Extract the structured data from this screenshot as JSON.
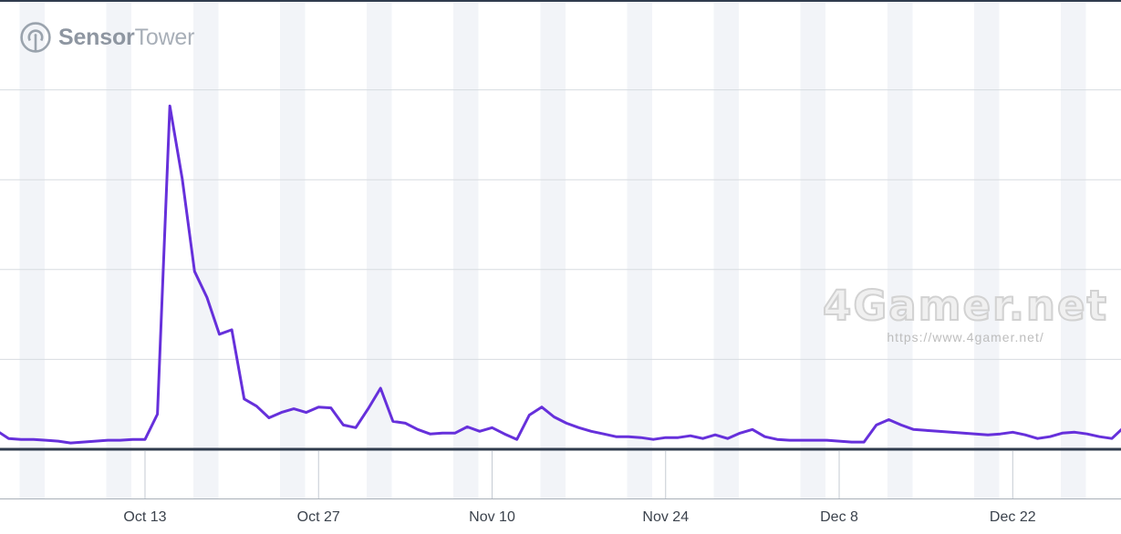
{
  "header": {
    "logo": {
      "brand_bold": "Sensor",
      "brand_light": "Tower"
    }
  },
  "watermark": {
    "title": "4Gamer.net",
    "url": "https://www.4gamer.net/"
  },
  "colors": {
    "line": "#6630DB",
    "baseline": "#303C4E",
    "gridline": "#D7DBE0",
    "weekend_band": "#F2F4F8",
    "tick_line": "#C5CBD3",
    "axis_hairline": "#A9B0B9",
    "axis_label": "#3B424C",
    "logo_gray": "#9AA3AD"
  },
  "chart_data": {
    "type": "line",
    "title": "",
    "xlabel": "",
    "ylabel": "",
    "x_interval": "daily",
    "x_start_date": "Oct 1",
    "x_end_date": "Dec 31",
    "x_tick_labels": [
      "Oct 13",
      "Oct 27",
      "Nov 10",
      "Nov 24",
      "Dec 8",
      "Dec 22"
    ],
    "x_tick_day_indices": [
      12,
      26,
      40,
      54,
      68,
      82
    ],
    "y_axis_labels_visible": false,
    "y_gridline_values": [
      1,
      2,
      3,
      4
    ],
    "ylim": [
      0,
      5
    ],
    "grid": "horizontal",
    "legend": "none",
    "series": [
      {
        "name": "",
        "color": "#6630DB",
        "values": [
          0.21,
          0.12,
          0.11,
          0.11,
          0.1,
          0.09,
          0.07,
          0.08,
          0.09,
          0.1,
          0.1,
          0.11,
          0.11,
          0.39,
          3.82,
          3.01,
          1.98,
          1.69,
          1.28,
          1.33,
          0.56,
          0.48,
          0.35,
          0.41,
          0.45,
          0.41,
          0.47,
          0.46,
          0.27,
          0.24,
          0.45,
          0.68,
          0.31,
          0.29,
          0.22,
          0.17,
          0.18,
          0.18,
          0.25,
          0.2,
          0.24,
          0.17,
          0.11,
          0.38,
          0.47,
          0.36,
          0.29,
          0.24,
          0.2,
          0.17,
          0.14,
          0.14,
          0.13,
          0.11,
          0.13,
          0.13,
          0.15,
          0.12,
          0.16,
          0.12,
          0.18,
          0.22,
          0.14,
          0.11,
          0.1,
          0.1,
          0.1,
          0.1,
          0.09,
          0.08,
          0.08,
          0.27,
          0.33,
          0.27,
          0.22,
          0.21,
          0.2,
          0.19,
          0.18,
          0.17,
          0.16,
          0.17,
          0.19,
          0.16,
          0.12,
          0.14,
          0.18,
          0.19,
          0.17,
          0.14,
          0.12,
          0.25
        ]
      }
    ]
  }
}
